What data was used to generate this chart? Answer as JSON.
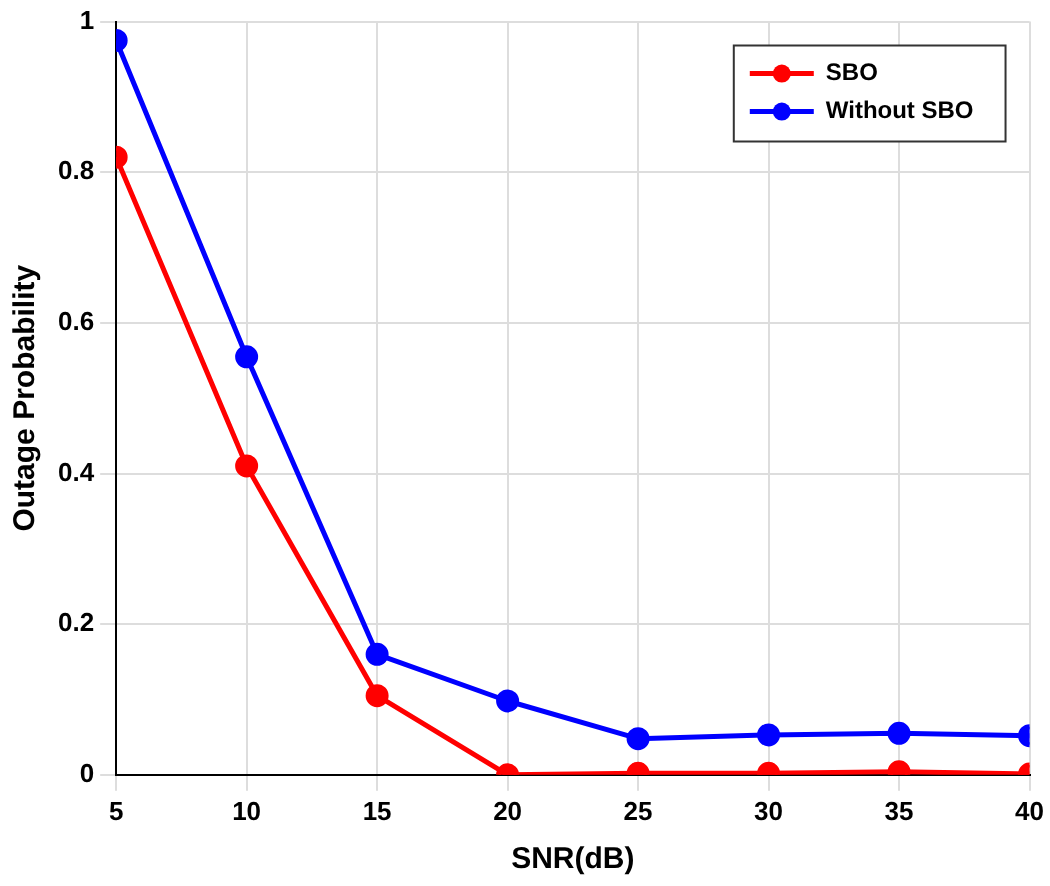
{
  "chart_data": {
    "type": "line",
    "xlabel": "SNR(dB)",
    "ylabel": "Outage Probability",
    "x": [
      5,
      10,
      15,
      20,
      25,
      30,
      35,
      40
    ],
    "series": [
      {
        "name": "SBO",
        "color": "#ff0000",
        "values": [
          0.82,
          0.41,
          0.105,
          0.0,
          0.002,
          0.002,
          0.004,
          0.001
        ]
      },
      {
        "name": "Without SBO",
        "color": "#0000ff",
        "values": [
          0.975,
          0.555,
          0.16,
          0.098,
          0.048,
          0.053,
          0.055,
          0.052
        ]
      }
    ],
    "xlim": [
      5,
      40
    ],
    "xticks": [
      5,
      10,
      15,
      20,
      25,
      30,
      35,
      40
    ],
    "ylim": [
      0,
      1
    ],
    "yticks": [
      0,
      0.2,
      0.4,
      0.6,
      0.8,
      1
    ],
    "grid": true,
    "legend": "top right",
    "marker": "circle",
    "line_style": "solid"
  }
}
